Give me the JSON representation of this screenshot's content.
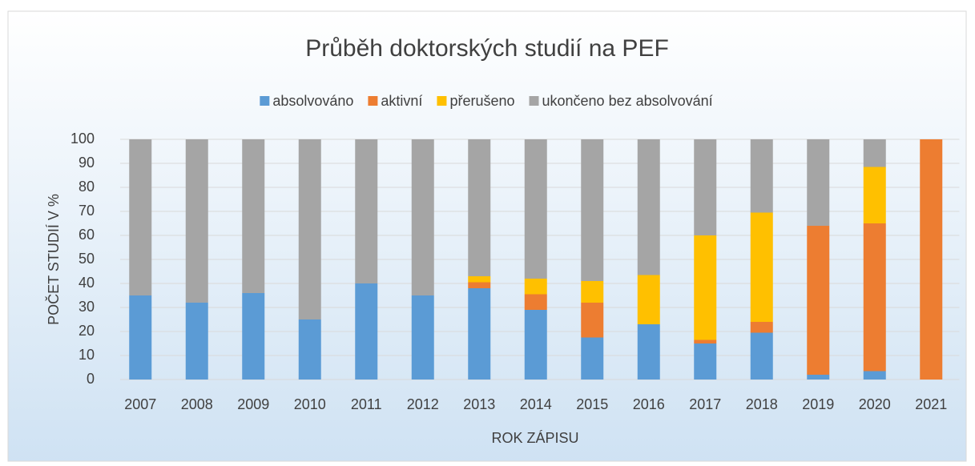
{
  "chart_data": {
    "type": "stacked_bar",
    "title": "Průběh doktorských studií na PEF",
    "x_label": "ROK ZÁPISU",
    "y_label": "POČET STUDIÍ V %",
    "categories": [
      "2007",
      "2008",
      "2009",
      "2010",
      "2011",
      "2012",
      "2013",
      "2014",
      "2015",
      "2016",
      "2017",
      "2018",
      "2019",
      "2020",
      "2021"
    ],
    "series": [
      {
        "name": "absolvováno",
        "color": "#5b9bd5",
        "values": [
          35,
          32,
          36,
          25,
          40,
          35,
          38,
          29,
          17.5,
          23,
          15,
          19.5,
          2,
          3.5,
          0
        ]
      },
      {
        "name": "aktivní",
        "color": "#ed7d31",
        "values": [
          0,
          0,
          0,
          0,
          0,
          0,
          2.5,
          6.5,
          14.5,
          0,
          1.5,
          4.5,
          62,
          61.5,
          100
        ]
      },
      {
        "name": "přerušeno",
        "color": "#ffc000",
        "values": [
          0,
          0,
          0,
          0,
          0,
          0,
          2.5,
          6.5,
          9,
          20.5,
          43.5,
          45.5,
          0,
          23.5,
          0
        ]
      },
      {
        "name": "ukončeno bez absolvování",
        "color": "#a5a5a5",
        "values": [
          65,
          68,
          64,
          75,
          60,
          65,
          57,
          58,
          59,
          56.5,
          40,
          30.5,
          36,
          11.5,
          0
        ]
      }
    ],
    "ylim": [
      0,
      100
    ],
    "yticks": [
      0,
      10,
      20,
      30,
      40,
      50,
      60,
      70,
      80,
      90,
      100
    ],
    "grid": true,
    "legend": "top"
  }
}
